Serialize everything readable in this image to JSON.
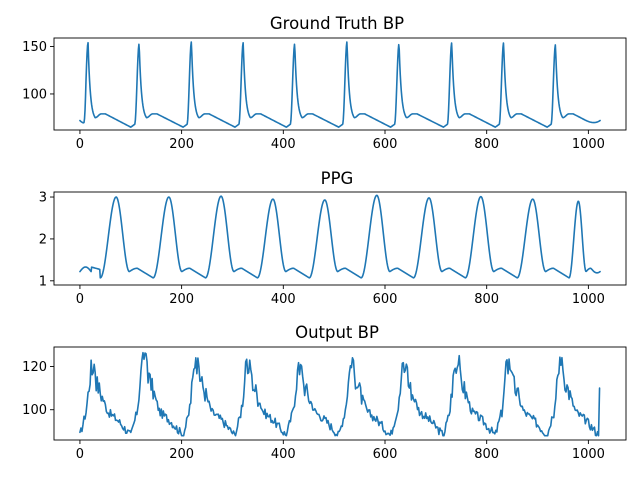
{
  "chart_data": [
    {
      "type": "line",
      "title": "Ground Truth BP",
      "xlabel": "",
      "ylabel": "",
      "xlim": [
        -51,
        1074
      ],
      "ylim": [
        62,
        159
      ],
      "xticks": [
        0,
        200,
        400,
        600,
        800,
        1000
      ],
      "yticks": [
        100,
        150
      ],
      "grid": false,
      "color": "#1f77b4",
      "signal": {
        "kind": "bp",
        "start": 0,
        "end": 1023,
        "beats": [
          0,
          100,
          203,
          305,
          406,
          509,
          611,
          715,
          817,
          919,
          1021
        ],
        "peaks": [
          154,
          153,
          155,
          154,
          153,
          155,
          153,
          154,
          154,
          152
        ],
        "baseline": 65,
        "notch_level": 79,
        "start_value": 72,
        "end_value": 72
      }
    },
    {
      "type": "line",
      "title": "PPG",
      "xlabel": "",
      "ylabel": "",
      "xlim": [
        -51,
        1074
      ],
      "ylim": [
        0.9,
        3.12
      ],
      "xticks": [
        0,
        200,
        400,
        600,
        800,
        1000
      ],
      "yticks": [
        1,
        2,
        3
      ],
      "grid": false,
      "color": "#1f77b4",
      "signal": {
        "kind": "ppg",
        "start": 0,
        "end": 1023,
        "troughs": [
          0,
          40,
          144,
          247,
          349,
          451,
          553,
          656,
          758,
          860,
          962,
          1023
        ],
        "peaks": [
          3.0,
          3.0,
          3.02,
          2.95,
          2.93,
          3.04,
          2.98,
          3.01,
          2.95,
          2.9
        ],
        "baseline": 1.07,
        "bump_level": 1.3,
        "start_value": 1.22,
        "end_value": 1.22
      }
    },
    {
      "type": "line",
      "title": "Output BP",
      "xlabel": "",
      "ylabel": "",
      "xlim": [
        -51,
        1074
      ],
      "ylim": [
        86,
        129
      ],
      "xticks": [
        0,
        200,
        400,
        600,
        800,
        1000
      ],
      "yticks": [
        100,
        120
      ],
      "grid": false,
      "color": "#1f77b4",
      "signal": {
        "kind": "noisy",
        "start": 0,
        "end": 1023,
        "beats": [
          0,
          100,
          203,
          305,
          406,
          509,
          611,
          715,
          817,
          919,
          1021
        ],
        "peaks": [
          123,
          127,
          125,
          124,
          122,
          124,
          123,
          125,
          124,
          125
        ],
        "floor": 88,
        "mid": 99,
        "end_value": 110
      }
    }
  ]
}
